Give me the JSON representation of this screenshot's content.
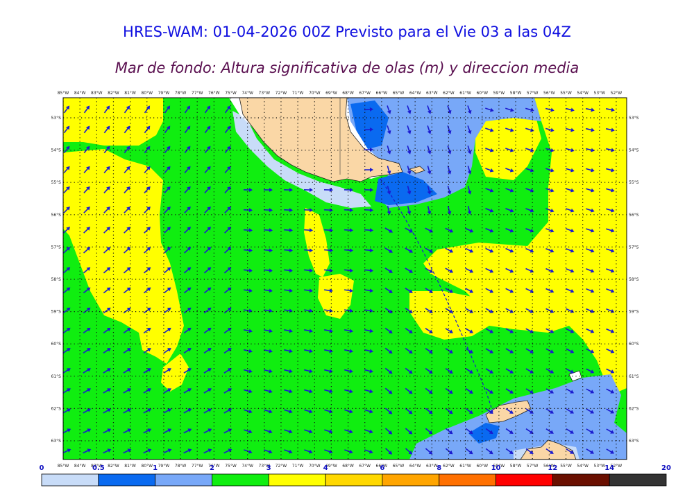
{
  "title": "HRES-WAM: 01-04-2026 00Z Previsto para el Vie 03 a las 04Z",
  "subtitle": "Mar de fondo: Altura significativa de olas (m) y direccion media",
  "longitude_ticks": [
    "85°W",
    "84°W",
    "83°W",
    "82°W",
    "81°W",
    "80°W",
    "79°W",
    "78°W",
    "77°W",
    "76°W",
    "75°W",
    "74°W",
    "73°W",
    "72°W",
    "71°W",
    "70°W",
    "69°W",
    "68°W",
    "67°W",
    "66°W",
    "65°W",
    "64°W",
    "63°W",
    "62°W",
    "61°W",
    "60°W",
    "59°W",
    "58°W",
    "57°W",
    "56°W",
    "55°W",
    "54°W",
    "53°W",
    "52°W"
  ],
  "latitude_ticks": [
    "53°S",
    "54°S",
    "55°S",
    "56°S",
    "57°S",
    "58°S",
    "59°S",
    "60°S",
    "61°S",
    "62°S",
    "63°S"
  ],
  "colorbar": {
    "labels": [
      "0",
      "0.5",
      "1",
      "2",
      "3",
      "4",
      "6",
      "8",
      "10",
      "12",
      "14",
      "20"
    ],
    "colors": [
      "#c8dcf8",
      "#0a6af0",
      "#78a8f8",
      "#10ee10",
      "#ffff00",
      "#ffd800",
      "#ffa500",
      "#ff7000",
      "#ff0000",
      "#6a0f00",
      "#333333"
    ]
  },
  "map_colors": {
    "land": "#fad7a6",
    "sea_0_5": "#c8dcf8",
    "sea_0_5_1": "#0a6af0",
    "sea_1_2": "#78a8f8",
    "sea_2_3": "#10ee10",
    "sea_3_4": "#ffff00",
    "arrow": "#1a1ad0"
  }
}
